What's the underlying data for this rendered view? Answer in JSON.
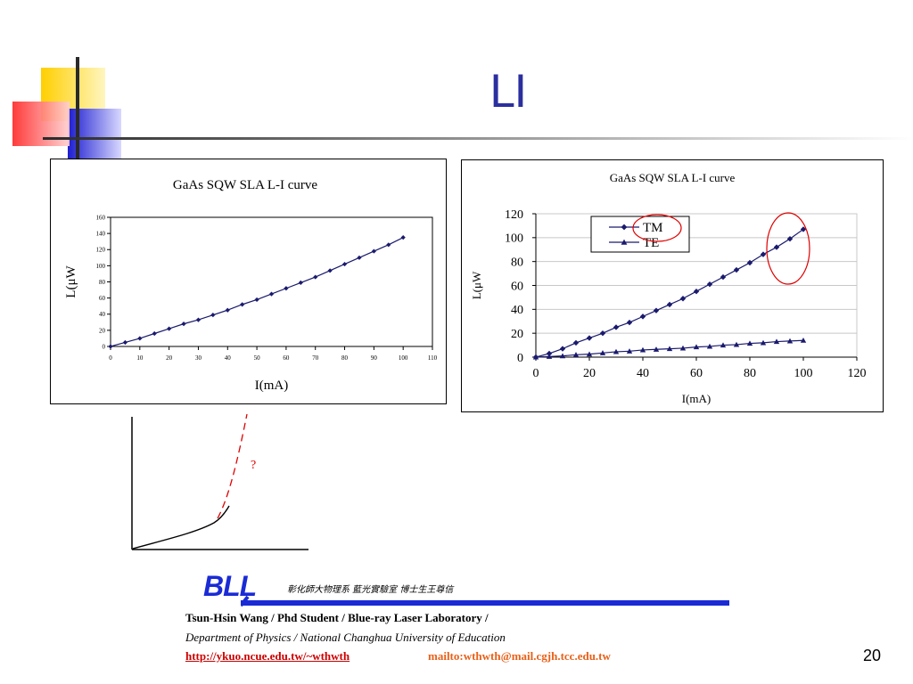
{
  "slide": {
    "title": "LI",
    "page_number": "20"
  },
  "footer": {
    "logo": "BLL",
    "lab_chinese": "彰化師大物理系 藍光實驗室 博士生王尊信",
    "author_line": "Tsun-Hsin Wang / Phd Student / Blue-ray Laser Laboratory /",
    "dept_line": "Department of Physics / National Changhua University of Education",
    "url": "http://ykuo.ncue.edu.tw/~wthwth",
    "mail": "mailto:wthwth@mail.cgjh.tcc.edu.tw"
  },
  "colors": {
    "title_blue": "#2b2f9e",
    "series_navy": "#1a1a6e",
    "highlight_red": "#e00000",
    "deco_yellow": "#ffd200",
    "deco_red": "#ff3b3b",
    "deco_blue": "#2a2ad6"
  },
  "chart_data": [
    {
      "type": "line",
      "title": "GaAs SQW SLA L-I curve",
      "xlabel": "I(mA)",
      "ylabel": "L(μW",
      "xlim": [
        0,
        110
      ],
      "ylim": [
        0,
        160
      ],
      "xticks": [
        "0",
        "10",
        "20",
        "30",
        "40",
        "50",
        "60",
        "70",
        "80",
        "90",
        "100",
        "110"
      ],
      "yticks": [
        "0",
        "20",
        "40",
        "60",
        "80",
        "100",
        "120",
        "140",
        "160"
      ],
      "grid": false,
      "series": [
        {
          "marker": "diamond",
          "x": [
            0,
            5,
            10,
            15,
            20,
            25,
            30,
            35,
            40,
            45,
            50,
            55,
            60,
            65,
            70,
            75,
            80,
            85,
            90,
            95,
            100
          ],
          "y": [
            0,
            5,
            10,
            16,
            22,
            28,
            33,
            39,
            45,
            52,
            58,
            65,
            72,
            79,
            86,
            94,
            102,
            110,
            118,
            126,
            135
          ]
        }
      ]
    },
    {
      "type": "line",
      "title": "GaAs SQW SLA L-I curve",
      "xlabel": "I(mA)",
      "ylabel": "L(μW",
      "xlim": [
        0,
        120
      ],
      "ylim": [
        0,
        120
      ],
      "xticks": [
        "0",
        "20",
        "40",
        "60",
        "80",
        "100",
        "120"
      ],
      "yticks": [
        "0",
        "20",
        "40",
        "60",
        "80",
        "100",
        "120"
      ],
      "grid": true,
      "legend_position": "top-center",
      "annotations": [
        "red circle around TM legend entry",
        "red ellipse around TM curve end"
      ],
      "series": [
        {
          "name": "TM",
          "marker": "diamond",
          "x": [
            0,
            5,
            10,
            15,
            20,
            25,
            30,
            35,
            40,
            45,
            50,
            55,
            60,
            65,
            70,
            75,
            80,
            85,
            90,
            95,
            100
          ],
          "y": [
            0,
            3,
            7,
            12,
            16,
            20,
            25,
            29,
            34,
            39,
            44,
            49,
            55,
            61,
            67,
            73,
            79,
            86,
            92,
            99,
            107
          ]
        },
        {
          "name": "TE",
          "marker": "triangle",
          "x": [
            0,
            5,
            10,
            15,
            20,
            25,
            30,
            35,
            40,
            45,
            50,
            55,
            60,
            65,
            70,
            75,
            80,
            85,
            90,
            95,
            100
          ],
          "y": [
            0,
            0.5,
            1,
            2,
            2.5,
            3.5,
            4.5,
            5,
            6,
            6.5,
            7,
            7.5,
            8.5,
            9,
            10,
            10.5,
            11.5,
            12,
            13,
            13.5,
            14
          ]
        }
      ]
    },
    {
      "type": "line",
      "title": "",
      "annotation": "?",
      "series": [
        {
          "name": "",
          "style": "solid-black"
        },
        {
          "name": "",
          "style": "dashed-red"
        }
      ]
    }
  ]
}
